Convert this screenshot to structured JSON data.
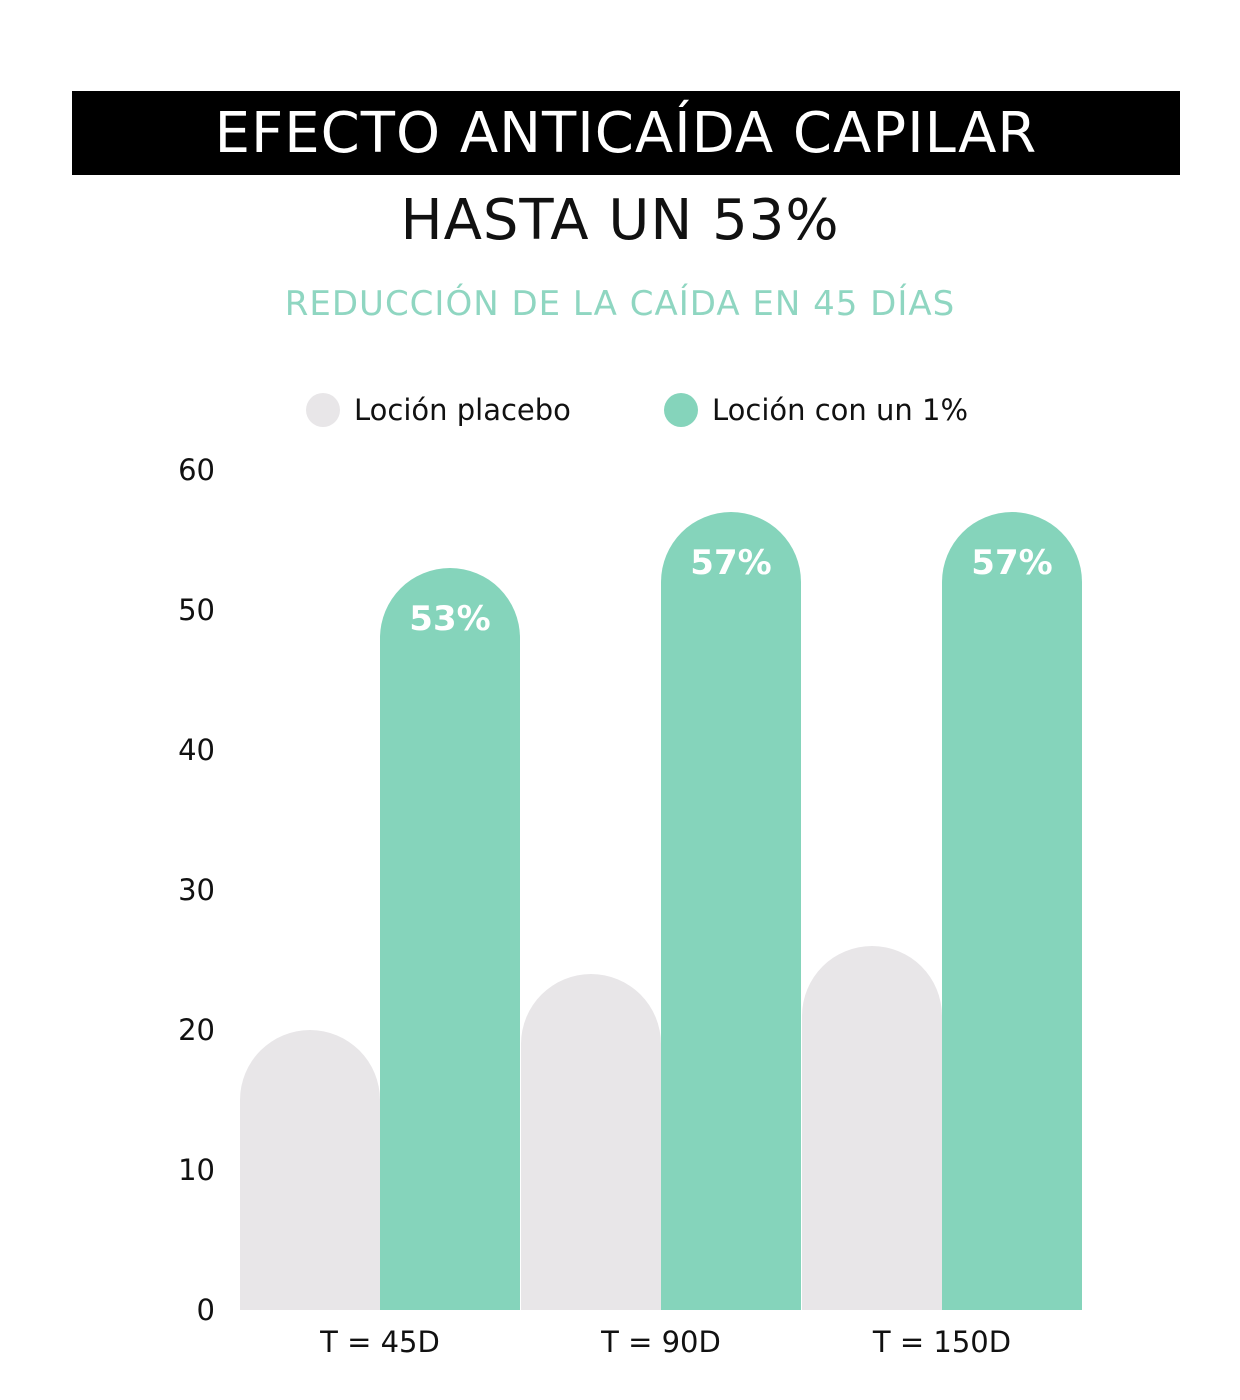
{
  "colors": {
    "title_bg": "#000000",
    "title_fg": "#ffffff",
    "subtitle": "#8fd6c1",
    "placebo": "#e8e6e8",
    "treatment": "#85d4bb",
    "bar_label": "#ffffff"
  },
  "chart_data": {
    "type": "bar",
    "title": "EFECTO ANTICAÍDA CAPILAR",
    "headline": "HASTA UN 53%",
    "subtitle": "REDUCCIÓN DE LA CAÍDA EN 45 DÍAS",
    "categories": [
      "T = 45D",
      "T = 90D",
      "T = 150D"
    ],
    "series": [
      {
        "name": "Loción placebo",
        "values": [
          20,
          24,
          26
        ],
        "labels": [
          "",
          "",
          ""
        ]
      },
      {
        "name": "Loción con un 1%",
        "values": [
          53,
          57,
          57
        ],
        "labels": [
          "53%",
          "57%",
          "57%"
        ]
      }
    ],
    "yticks": [
      "0",
      "10",
      "20",
      "30",
      "40",
      "50",
      "60"
    ],
    "ylim": [
      0,
      60
    ],
    "xlabel": "",
    "ylabel": "",
    "grid": false,
    "legend_position": "top"
  }
}
